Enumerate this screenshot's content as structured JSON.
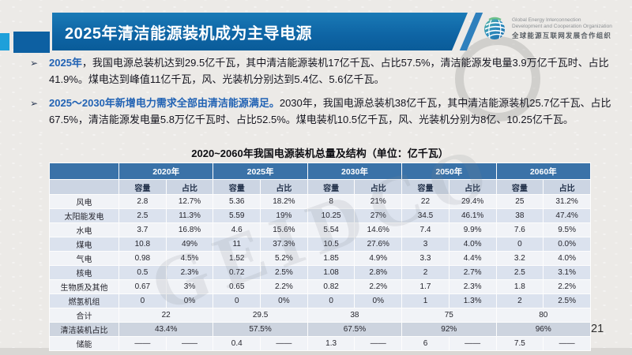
{
  "slide": {
    "title": "2025年清洁能源装机成为主导电源",
    "page_number": "21"
  },
  "logo": {
    "line1": "Global Energy Interconnection",
    "line2": "Development and Cooperation Organization",
    "line3": "全球能源互联网发展合作组织"
  },
  "bullets": [
    {
      "marker": "➢",
      "lead": "2025年",
      "rest": "，我国电源总装机达到29.5亿千瓦，其中清洁能源装机17亿千瓦、占比57.5%，清洁能源发电量3.9万亿千瓦时、占比41.9%。煤电达到峰值11亿千瓦，风、光装机分别达到5.4亿、5.6亿千瓦。"
    },
    {
      "marker": "➢",
      "lead": "2025～2030年新增电力需求全部由清洁能源满足。",
      "rest": "2030年，我国电源总装机38亿千瓦，其中清洁能源装机25.7亿千瓦、占比67.5%，清洁能源发电量5.8万亿千瓦时、占比52.5%。煤电装机10.5亿千瓦，风、光装机分别为8亿、10.25亿千瓦。"
    }
  ],
  "table": {
    "title": "2020~2060年我国电源装机总量及结构（单位：亿千瓦）",
    "year_headers": [
      "2020年",
      "2025年",
      "2030年",
      "2050年",
      "2060年"
    ],
    "sub_headers": [
      "容量",
      "占比"
    ],
    "rows": [
      {
        "label": "风电",
        "span": 1,
        "cells": [
          "2.8",
          "12.7%",
          "5.36",
          "18.2%",
          "8",
          "21%",
          "22",
          "29.4%",
          "25",
          "31.2%"
        ]
      },
      {
        "label": "太阳能发电",
        "span": 1,
        "cells": [
          "2.5",
          "11.3%",
          "5.59",
          "19%",
          "10.25",
          "27%",
          "34.5",
          "46.1%",
          "38",
          "47.4%"
        ]
      },
      {
        "label": "水电",
        "span": 1,
        "cells": [
          "3.7",
          "16.8%",
          "4.6",
          "15.6%",
          "5.54",
          "14.6%",
          "7.4",
          "9.9%",
          "7.6",
          "9.5%"
        ]
      },
      {
        "label": "煤电",
        "span": 1,
        "cells": [
          "10.8",
          "49%",
          "11",
          "37.3%",
          "10.5",
          "27.6%",
          "3",
          "4.0%",
          "0",
          "0.0%"
        ]
      },
      {
        "label": "气电",
        "span": 1,
        "cells": [
          "0.98",
          "4.5%",
          "1.52",
          "5.2%",
          "1.85",
          "4.9%",
          "3.3",
          "4.4%",
          "3.2",
          "4.0%"
        ]
      },
      {
        "label": "核电",
        "span": 1,
        "cells": [
          "0.5",
          "2.3%",
          "0.72",
          "2.5%",
          "1.08",
          "2.8%",
          "2",
          "2.7%",
          "2.5",
          "3.1%"
        ]
      },
      {
        "label": "生物质及其他",
        "span": 1,
        "cells": [
          "0.67",
          "3%",
          "0.65",
          "2.2%",
          "0.82",
          "2.2%",
          "1.7",
          "2.3%",
          "1.8",
          "2.2%"
        ]
      },
      {
        "label": "燃氢机组",
        "span": 1,
        "cells": [
          "0",
          "0%",
          "0",
          "0%",
          "0",
          "0%",
          "1",
          "1.3%",
          "2",
          "2.5%"
        ]
      },
      {
        "label": "合计",
        "span": 2,
        "cells": [
          "22",
          "29.5",
          "38",
          "75",
          "80"
        ]
      },
      {
        "label": "清洁装机占比",
        "span": 2,
        "cells": [
          "43.4%",
          "57.5%",
          "67.5%",
          "92%",
          "96%"
        ]
      },
      {
        "label": "储能",
        "span": 1,
        "cells": [
          "——",
          "——",
          "0.4",
          "——",
          "1.3",
          "——",
          "6",
          "——",
          "7.5",
          "——"
        ]
      }
    ]
  },
  "watermark": "GEIDCO",
  "chart_data": {
    "type": "table",
    "title": "2020~2060年我国电源装机总量及结构（单位：亿千瓦）",
    "categories": [
      "2020",
      "2025",
      "2030",
      "2050",
      "2060"
    ],
    "series": [
      {
        "name": "风电-容量",
        "values": [
          2.8,
          5.36,
          8,
          22,
          25
        ]
      },
      {
        "name": "太阳能发电-容量",
        "values": [
          2.5,
          5.59,
          10.25,
          34.5,
          38
        ]
      },
      {
        "name": "水电-容量",
        "values": [
          3.7,
          4.6,
          5.54,
          7.4,
          7.6
        ]
      },
      {
        "name": "煤电-容量",
        "values": [
          10.8,
          11,
          10.5,
          3,
          0
        ]
      },
      {
        "name": "气电-容量",
        "values": [
          0.98,
          1.52,
          1.85,
          3.3,
          3.2
        ]
      },
      {
        "name": "核电-容量",
        "values": [
          0.5,
          0.72,
          1.08,
          2,
          2.5
        ]
      },
      {
        "name": "生物质及其他-容量",
        "values": [
          0.67,
          0.65,
          0.82,
          1.7,
          1.8
        ]
      },
      {
        "name": "燃氢机组-容量",
        "values": [
          0,
          0,
          0,
          1,
          2
        ]
      },
      {
        "name": "合计",
        "values": [
          22,
          29.5,
          38,
          75,
          80
        ]
      },
      {
        "name": "清洁装机占比(%)",
        "values": [
          43.4,
          57.5,
          67.5,
          92,
          96
        ]
      },
      {
        "name": "储能",
        "values": [
          null,
          0.4,
          1.3,
          6,
          7.5
        ]
      }
    ]
  },
  "colors": {
    "title_bar": "#0e64a4",
    "accent_cyan": "#1ea0da",
    "table_header": "#3a72a8",
    "table_subheader": "#ccd5e3",
    "row_light": "#f1f3f7",
    "row_blue": "#dbe2ee",
    "lead_blue": "#2263b4",
    "background": "#eceae7"
  }
}
